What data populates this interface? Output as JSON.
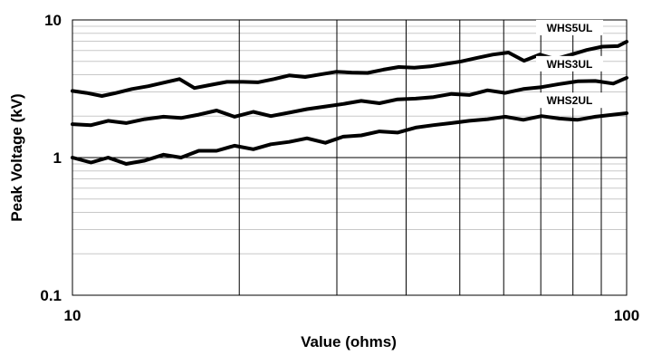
{
  "chart_data": {
    "type": "line",
    "title": "",
    "xlabel": "Value (ohms)",
    "ylabel": "Peak Voltage (kV)",
    "xscale": "log",
    "yscale": "log",
    "xlim": [
      10,
      100
    ],
    "ylim": [
      0.1,
      10
    ],
    "xtick_labels": [
      "10",
      "100"
    ],
    "ytick_labels": [
      "10",
      "1",
      "0.1"
    ],
    "grid": true,
    "series": [
      {
        "name": "WHS5UL",
        "x": [
          10,
          10.6,
          11.3,
          12,
          12.8,
          13.7,
          14.6,
          15.6,
          16.6,
          17.8,
          19.0,
          20.3,
          21.6,
          23.1,
          24.6,
          26.3,
          28.0,
          29.9,
          31.9,
          34.1,
          36.4,
          38.8,
          41.4,
          44.2,
          47.2,
          50.3,
          53.7,
          57.3,
          61.2,
          65.3,
          69.7,
          74.4,
          79.4,
          84.7,
          90.4,
          96.5,
          100
        ],
        "y": [
          3.05,
          2.95,
          2.8,
          2.95,
          3.15,
          3.3,
          3.5,
          3.72,
          3.2,
          3.38,
          3.55,
          3.55,
          3.52,
          3.72,
          3.95,
          3.85,
          4.02,
          4.2,
          4.15,
          4.12,
          4.35,
          4.55,
          4.5,
          4.6,
          4.8,
          5.0,
          5.3,
          5.6,
          5.8,
          5.05,
          5.6,
          5.2,
          5.6,
          6.05,
          6.4,
          6.45,
          6.95
        ]
      },
      {
        "name": "WHS3UL",
        "x": [
          10,
          10.8,
          11.6,
          12.5,
          13.5,
          14.6,
          15.7,
          16.9,
          18.2,
          19.6,
          21.2,
          22.8,
          24.6,
          26.5,
          28.6,
          30.8,
          33.2,
          35.8,
          38.6,
          41.6,
          44.8,
          48.3,
          52.0,
          56.1,
          60.4,
          65.1,
          70.2,
          75.6,
          81.5,
          87.8,
          94.6,
          100
        ],
        "y": [
          1.75,
          1.72,
          1.85,
          1.78,
          1.9,
          1.98,
          1.94,
          2.05,
          2.2,
          1.98,
          2.15,
          2.0,
          2.12,
          2.25,
          2.35,
          2.45,
          2.58,
          2.48,
          2.65,
          2.68,
          2.75,
          2.9,
          2.85,
          3.08,
          2.95,
          3.15,
          3.25,
          3.42,
          3.58,
          3.6,
          3.45,
          3.8
        ]
      },
      {
        "name": "WHS2UL",
        "x": [
          10,
          10.8,
          11.6,
          12.5,
          13.5,
          14.6,
          15.7,
          16.9,
          18.2,
          19.6,
          21.2,
          22.8,
          24.6,
          26.5,
          28.6,
          30.8,
          33.2,
          35.8,
          38.6,
          41.6,
          44.8,
          48.3,
          52.0,
          56.1,
          60.4,
          65.1,
          70.2,
          75.6,
          81.5,
          87.8,
          94.6,
          100
        ],
        "y": [
          1.0,
          0.92,
          1.0,
          0.9,
          0.95,
          1.05,
          1.0,
          1.12,
          1.12,
          1.22,
          1.15,
          1.25,
          1.3,
          1.38,
          1.28,
          1.42,
          1.45,
          1.55,
          1.52,
          1.65,
          1.72,
          1.78,
          1.85,
          1.9,
          1.98,
          1.88,
          2.0,
          1.92,
          1.88,
          1.98,
          2.05,
          2.1
        ]
      }
    ]
  }
}
